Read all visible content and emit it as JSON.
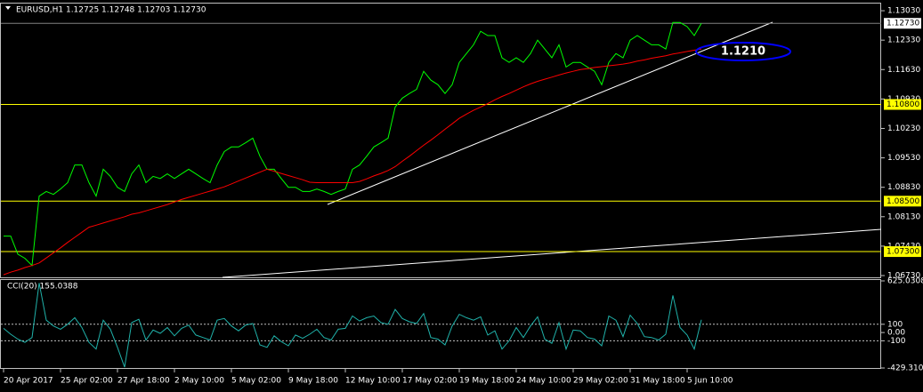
{
  "chart_data": [
    {
      "type": "line",
      "title": "EURUSD,H1  1.12725 1.12748 1.12703 1.12730",
      "categories": [
        "20 Apr 2017",
        null,
        null,
        null,
        null,
        null,
        null,
        null,
        "25 Apr 02:00",
        null,
        null,
        null,
        null,
        null,
        null,
        null,
        "27 Apr 18:00",
        null,
        null,
        null,
        null,
        null,
        null,
        null,
        "2 May 10:00",
        null,
        null,
        null,
        null,
        null,
        null,
        null,
        "5 May 02:00",
        null,
        null,
        null,
        null,
        null,
        null,
        null,
        "9 May 18:00",
        null,
        null,
        null,
        null,
        null,
        null,
        null,
        "12 May 10:00",
        null,
        null,
        null,
        null,
        null,
        null,
        null,
        "17 May 02:00",
        null,
        null,
        null,
        null,
        null,
        null,
        null,
        "19 May 18:00",
        null,
        null,
        null,
        null,
        null,
        null,
        null,
        "24 May 10:00",
        null,
        null,
        null,
        null,
        null,
        null,
        null,
        "29 May 02:00",
        null,
        null,
        null,
        null,
        null,
        null,
        null,
        "31 May 18:00",
        null,
        null,
        null,
        null,
        null,
        null,
        null,
        "5 Jun 10:00",
        null,
        null
      ],
      "series": [
        {
          "color": "#00ff00",
          "values": [
            1.0767,
            1.0767,
            1.0724,
            1.0714,
            1.0697,
            1.0862,
            1.0873,
            1.0866,
            1.0879,
            1.0894,
            1.0936,
            1.0936,
            1.0894,
            1.0862,
            1.0926,
            1.0909,
            1.0883,
            1.0873,
            1.0915,
            1.0936,
            1.0894,
            1.0909,
            1.0904,
            1.0915,
            1.0904,
            1.0915,
            1.0926,
            1.0915,
            1.0904,
            1.0894,
            1.0936,
            1.0968,
            1.0979,
            1.0979,
            1.0989,
            1.1,
            1.0957,
            1.0926,
            1.0926,
            1.0904,
            1.0883,
            1.0883,
            1.0873,
            1.0873,
            1.0879,
            1.0873,
            1.0866,
            1.0873,
            1.0879,
            1.0926,
            1.0936,
            1.0957,
            1.0979,
            1.0989,
            1.1,
            1.1074,
            1.1095,
            1.1106,
            1.1116,
            1.1159,
            1.1138,
            1.1127,
            1.1106,
            1.1127,
            1.118,
            1.1201,
            1.1222,
            1.1254,
            1.1244,
            1.1244,
            1.1191,
            1.118,
            1.1191,
            1.118,
            1.1201,
            1.1233,
            1.1212,
            1.1191,
            1.1222,
            1.1169,
            1.118,
            1.118,
            1.1169,
            1.1159,
            1.1127,
            1.118,
            1.1201,
            1.1191,
            1.1233,
            1.1244,
            1.1233,
            1.1222,
            1.1222,
            1.1212,
            1.1275,
            1.1275,
            1.1265,
            1.1244,
            1.1273
          ]
        },
        {
          "color": "#ff0000",
          "values": [
            1.0675,
            1.0681,
            1.0686,
            1.0692,
            1.0697,
            1.0703,
            1.0715,
            1.0727,
            1.0739,
            1.0752,
            1.0764,
            1.0776,
            1.0788,
            1.0793,
            1.0798,
            1.0803,
            1.0808,
            1.0813,
            1.0819,
            1.0822,
            1.0827,
            1.0832,
            1.0837,
            1.0842,
            1.0848,
            1.0854,
            1.0859,
            1.0864,
            1.0869,
            1.0874,
            1.0879,
            1.0884,
            1.0891,
            1.0898,
            1.0905,
            1.0912,
            1.0919,
            1.0926,
            1.0921,
            1.0916,
            1.0911,
            1.0906,
            1.0901,
            1.0895,
            1.0894,
            1.0894,
            1.0894,
            1.0894,
            1.0894,
            1.0894,
            1.0897,
            1.0903,
            1.091,
            1.0916,
            1.0923,
            1.0932,
            1.0945,
            1.0957,
            1.097,
            1.0983,
            1.0995,
            1.1008,
            1.1021,
            1.1034,
            1.1047,
            1.1057,
            1.1066,
            1.1074,
            1.1082,
            1.1091,
            1.1099,
            1.1106,
            1.1114,
            1.1122,
            1.1129,
            1.1135,
            1.114,
            1.1145,
            1.115,
            1.1155,
            1.1159,
            1.1163,
            1.1165,
            1.1168,
            1.117,
            1.1172,
            1.1174,
            1.1176,
            1.1179,
            1.1183,
            1.1186,
            1.119,
            1.1193,
            1.1196,
            1.12,
            1.1203,
            1.1206,
            1.1209,
            1.1212
          ]
        }
      ],
      "ylim": [
        1.06688,
        1.13285
      ],
      "yticks": [
        {
          "value": 1.1303,
          "label": "1.13030"
        },
        {
          "value": 1.1233,
          "label": "1.12330"
        },
        {
          "value": 1.1163,
          "label": "1.11630"
        },
        {
          "value": 1.1093,
          "label": "1.10930"
        },
        {
          "value": 1.1023,
          "label": "1.10230"
        },
        {
          "value": 1.0953,
          "label": "1.09530"
        },
        {
          "value": 1.0883,
          "label": "1.08830"
        },
        {
          "value": 1.0813,
          "label": "1.08130"
        },
        {
          "value": 1.0743,
          "label": "1.07430"
        },
        {
          "value": 1.0673,
          "label": "1.06730"
        }
      ],
      "levels": [
        {
          "value": 1.108,
          "label": "1.10800"
        },
        {
          "value": 1.085,
          "label": "1.08500"
        },
        {
          "value": 1.073,
          "label": "1.07300"
        }
      ],
      "level_color": "#ffff00",
      "current_price": {
        "value": 1.1273,
        "label": "1.12730"
      },
      "annotation": "1.1210"
    },
    {
      "type": "line",
      "title": "CCI(20) 155.0388",
      "series": [
        {
          "color": "#20b2aa",
          "values": [
            50,
            -20,
            -80,
            -120,
            -60,
            600,
            150,
            80,
            40,
            100,
            180,
            60,
            -120,
            -200,
            150,
            40,
            -180,
            -420,
            120,
            160,
            -90,
            30,
            -10,
            60,
            -40,
            50,
            90,
            -30,
            -60,
            -90,
            150,
            170,
            80,
            20,
            90,
            110,
            -150,
            -180,
            -40,
            -110,
            -160,
            -30,
            -70,
            -20,
            40,
            -60,
            -90,
            40,
            50,
            200,
            140,
            180,
            200,
            120,
            100,
            280,
            170,
            130,
            110,
            230,
            -60,
            -80,
            -150,
            80,
            220,
            180,
            150,
            190,
            -30,
            20,
            -200,
            -100,
            60,
            -60,
            80,
            190,
            -80,
            -130,
            120,
            -200,
            30,
            20,
            -60,
            -80,
            -160,
            200,
            150,
            -50,
            210,
            110,
            -50,
            -60,
            -90,
            -20,
            450,
            60,
            -30,
            -200,
            155.0388
          ]
        }
      ],
      "ylim": [
        -429.3105,
        625.0308
      ],
      "yticks": [
        625.0308,
        100,
        {
          "value": 0,
          "label": "0.00"
        },
        -100,
        -429.3105
      ],
      "levels": [
        100,
        -100
      ]
    }
  ]
}
